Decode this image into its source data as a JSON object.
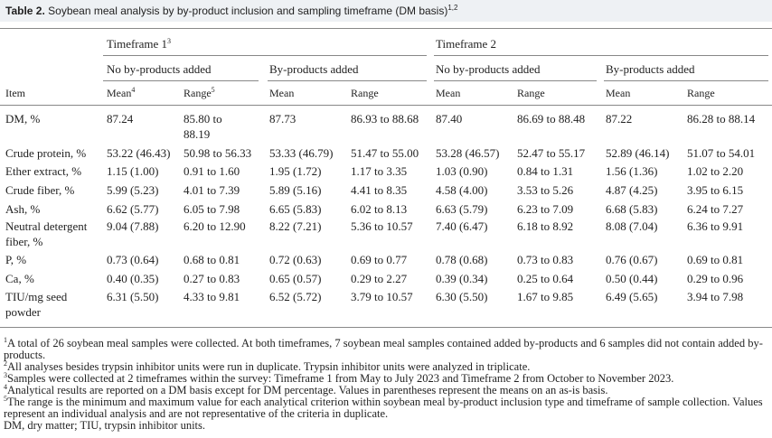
{
  "title": {
    "label": "Table 2.",
    "text": "Soybean meal analysis by by-product inclusion and sampling timeframe (DM basis)",
    "sup": "1,2"
  },
  "table": {
    "timeframes": [
      {
        "label": "Timeframe 1",
        "sup": "3"
      },
      {
        "label": "Timeframe 2"
      }
    ],
    "groups": [
      "No by-products added",
      "By-products added",
      "No by-products added",
      "By-products added"
    ],
    "item_header": "Item",
    "subheaders": [
      {
        "label": "Mean",
        "sup": "4"
      },
      {
        "label": "Range",
        "sup": "5"
      },
      {
        "label": "Mean"
      },
      {
        "label": "Range"
      },
      {
        "label": "Mean"
      },
      {
        "label": "Range"
      },
      {
        "label": "Mean"
      },
      {
        "label": "Range"
      }
    ],
    "rows": [
      {
        "item": "DM, %",
        "cells": [
          "87.24",
          "85.80 to 88.19",
          "87.73",
          "86.93 to 88.68",
          "87.40",
          "86.69 to 88.48",
          "87.22",
          "86.28 to 88.14"
        ]
      },
      {
        "item": "Crude protein, %",
        "cells": [
          "53.22 (46.43)",
          "50.98 to 56.33",
          "53.33 (46.79)",
          "51.47 to 55.00",
          "53.28 (46.57)",
          "52.47 to 55.17",
          "52.89 (46.14)",
          "51.07 to 54.01"
        ]
      },
      {
        "item": "Ether extract, %",
        "cells": [
          "1.15 (1.00)",
          "0.91 to 1.60",
          "1.95 (1.72)",
          "1.17 to 3.35",
          "1.03 (0.90)",
          "0.84 to 1.31",
          "1.56 (1.36)",
          "1.02 to 2.20"
        ]
      },
      {
        "item": "Crude fiber, %",
        "cells": [
          "5.99 (5.23)",
          "4.01 to 7.39",
          "5.89 (5.16)",
          "4.41 to 8.35",
          "4.58 (4.00)",
          "3.53 to 5.26",
          "4.87 (4.25)",
          "3.95 to 6.15"
        ]
      },
      {
        "item": "Ash, %",
        "cells": [
          "6.62 (5.77)",
          "6.05 to 7.98",
          "6.65 (5.83)",
          "6.02 to 8.13",
          "6.63 (5.79)",
          "6.23 to 7.09",
          "6.68 (5.83)",
          "6.24 to 7.27"
        ]
      },
      {
        "item": "Neutral detergent fiber, %",
        "cells": [
          "9.04 (7.88)",
          "6.20 to 12.90",
          "8.22 (7.21)",
          "5.36 to 10.57",
          "7.40 (6.47)",
          "6.18 to 8.92",
          "8.08 (7.04)",
          "6.36 to 9.91"
        ]
      },
      {
        "item": "P, %",
        "cells": [
          "0.73 (0.64)",
          "0.68 to 0.81",
          "0.72 (0.63)",
          "0.69 to 0.77",
          "0.78 (0.68)",
          "0.73 to 0.83",
          "0.76 (0.67)",
          "0.69 to 0.81"
        ]
      },
      {
        "item": "Ca, %",
        "cells": [
          "0.40 (0.35)",
          "0.27 to 0.83",
          "0.65 (0.57)",
          "0.29 to 2.27",
          "0.39 (0.34)",
          "0.25 to 0.64",
          "0.50 (0.44)",
          "0.29 to 0.96"
        ]
      },
      {
        "item": "TIU/mg seed powder",
        "cells": [
          "6.31 (5.50)",
          "4.33 to 9.81",
          "6.52 (5.72)",
          "3.79 to 10.57",
          "6.30 (5.50)",
          "1.67 to 9.85",
          "6.49 (5.65)",
          "3.94 to 7.98"
        ]
      }
    ]
  },
  "footnotes": [
    {
      "sup": "1",
      "text": "A total of 26 soybean meal samples were collected. At both timeframes, 7 soybean meal samples contained added by-products and 6 samples did not contain added by-products."
    },
    {
      "sup": "2",
      "text": "All analyses besides trypsin inhibitor units were run in duplicate. Trypsin inhibitor units were analyzed in triplicate."
    },
    {
      "sup": "3",
      "text": "Samples were collected at 2 timeframes within the survey: Timeframe 1 from May to July 2023 and Timeframe 2 from October to November 2023."
    },
    {
      "sup": "4",
      "text": "Analytical results are reported on a DM basis except for DM percentage. Values in parentheses represent the means on an as-is basis."
    },
    {
      "sup": "5",
      "text": "The range is the minimum and maximum value for each analytical criterion within soybean meal by-product inclusion type and timeframe of sample collection. Values represent an individual analysis and are not representative of the criteria in duplicate."
    },
    {
      "text": "DM, dry matter; TIU, trypsin inhibitor units."
    }
  ]
}
